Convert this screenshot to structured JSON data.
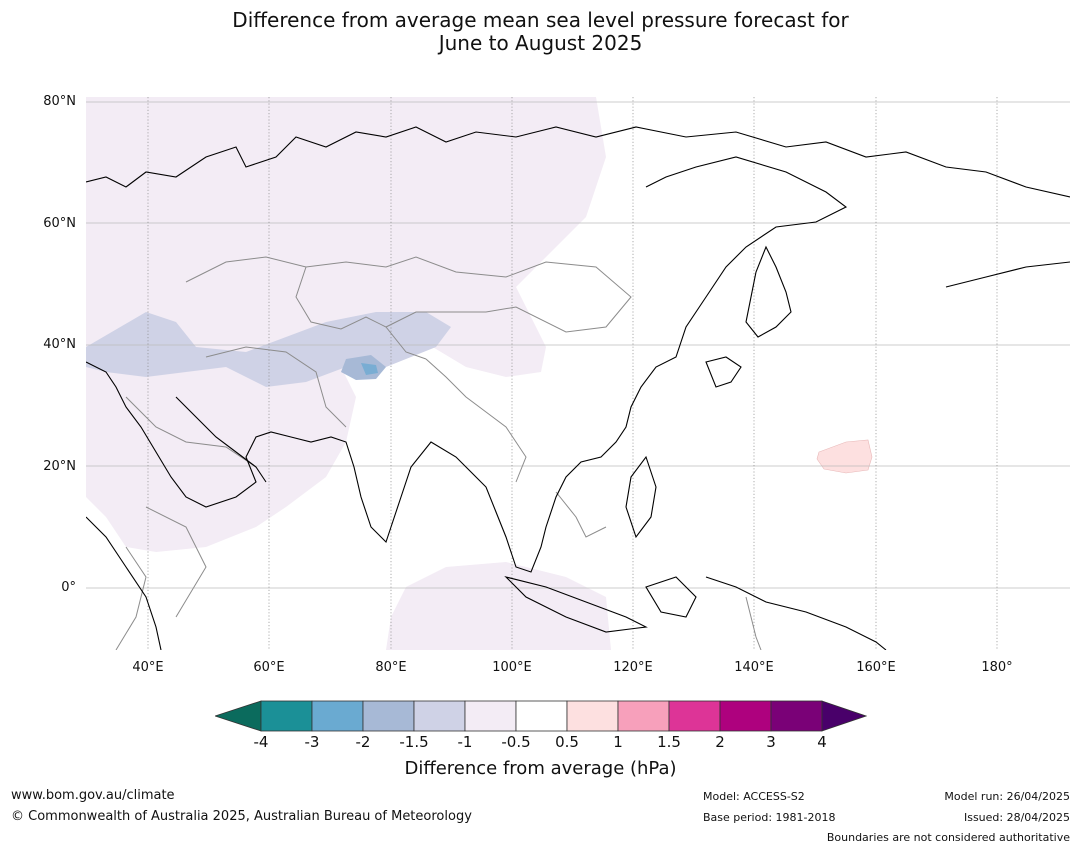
{
  "title_line1": "Difference from average mean sea level pressure forecast for",
  "title_line2": "June to August 2025",
  "lat_labels": [
    "80°N",
    "60°N",
    "40°N",
    "20°N",
    "0°"
  ],
  "lon_labels": [
    "40°E",
    "60°E",
    "80°E",
    "100°E",
    "120°E",
    "140°E",
    "160°E",
    "180°"
  ],
  "colorbar": {
    "ticks": [
      "-4",
      "-3",
      "-2",
      "-1.5",
      "-1",
      "-0.5",
      "0.5",
      "1",
      "1.5",
      "2",
      "3",
      "4"
    ],
    "colors": {
      "under": "#0b6b5d",
      "bin_-4_-3": "#1b9097",
      "bin_-3_-2": "#6aaad1",
      "bin_-2_-1.5": "#a7b9d6",
      "bin_-1.5_-1": "#cfd2e6",
      "bin_-1_-0.5": "#f3ecf5",
      "bin_-0.5_0.5": "#ffffff",
      "bin_0.5_1": "#fde0e0",
      "bin_1_1.5": "#f7a0bb",
      "bin_1.5_2": "#dd3497",
      "bin_2_3": "#ae017e",
      "bin_3_4": "#7a0177",
      "over": "#49006a"
    },
    "label": "Difference from average (hPa)"
  },
  "footer": {
    "website": "www.bom.gov.au/climate",
    "copyright": "© Commonwealth of Australia 2025, Australian Bureau of Meteorology",
    "model": "Model: ACCESS-S2",
    "base_period": "Base period: 1981-2018",
    "model_run": "Model run: 26/04/2025",
    "issued": "Issued: 28/04/2025",
    "disclaimer": "Boundaries are not considered authoritative"
  }
}
